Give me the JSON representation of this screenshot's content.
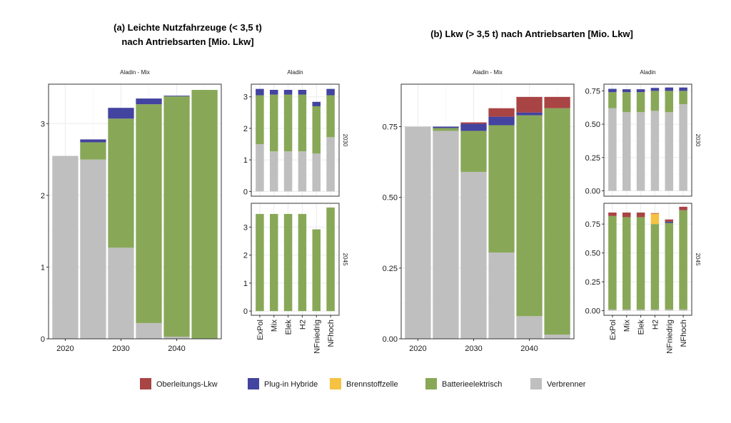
{
  "colors": {
    "Oberleitungs-Lkw": "#a94444",
    "Plug-in Hybride": "#4343a0",
    "Brennstoffzelle": "#f5c242",
    "Batterieelektrisch": "#88a858",
    "Verbrenner": "#bfbfbf"
  },
  "legend": {
    "items": [
      "Oberleitungs-Lkw",
      "Plug-in Hybride",
      "Brennstoffzelle",
      "Batterieelektrisch",
      "Verbrenner"
    ]
  },
  "chart_data": [
    {
      "type": "bar",
      "stacked": true,
      "title": "(a) Leichte Nutzfahrzeuge (< 3,5 t)\nnach Antriebsarten [Mio. Lkw]",
      "panels": [
        {
          "strip": "Aladin - Mix",
          "x": [
            2020,
            2025,
            2030,
            2035,
            2040,
            2045
          ],
          "xticks": [
            "2020",
            "2030",
            "2040"
          ],
          "ylim": [
            0,
            3.55
          ],
          "yticks": [
            0,
            1,
            2,
            3
          ],
          "yticklabels": [
            "0",
            "1",
            "2",
            "3"
          ],
          "series": [
            {
              "name": "Verbrenner",
              "values": [
                2.55,
                2.5,
                1.27,
                0.22,
                0.03,
                0.0
              ]
            },
            {
              "name": "Batterieelektrisch",
              "values": [
                0.0,
                0.24,
                1.8,
                3.05,
                3.35,
                3.47
              ]
            },
            {
              "name": "Brennstoffzelle",
              "values": [
                0,
                0,
                0,
                0,
                0,
                0
              ]
            },
            {
              "name": "Plug-in Hybride",
              "values": [
                0.0,
                0.04,
                0.15,
                0.08,
                0.01,
                0.0
              ]
            },
            {
              "name": "Oberleitungs-Lkw",
              "values": [
                0,
                0,
                0,
                0,
                0,
                0
              ]
            }
          ]
        },
        {
          "strip": "Aladin",
          "facet": "2030",
          "categories": [
            "ExPol",
            "Mix",
            "Elek",
            "H2",
            "NFniedrig",
            "NFhoch"
          ],
          "ylim": [
            -0.15,
            3.4
          ],
          "yticks": [
            0,
            1,
            2,
            3
          ],
          "yticklabels": [
            "0",
            "1",
            "2",
            "3"
          ],
          "series": [
            {
              "name": "Verbrenner",
              "values": [
                1.5,
                1.27,
                1.27,
                1.27,
                1.2,
                1.72
              ]
            },
            {
              "name": "Batterieelektrisch",
              "values": [
                1.55,
                1.8,
                1.8,
                1.8,
                1.5,
                1.33
              ]
            },
            {
              "name": "Brennstoffzelle",
              "values": [
                0,
                0,
                0,
                0,
                0,
                0
              ]
            },
            {
              "name": "Plug-in Hybride",
              "values": [
                0.2,
                0.15,
                0.15,
                0.15,
                0.14,
                0.2
              ]
            },
            {
              "name": "Oberleitungs-Lkw",
              "values": [
                0,
                0,
                0,
                0,
                0,
                0
              ]
            }
          ]
        },
        {
          "strip": "",
          "facet": "2045",
          "categories": [
            "ExPol",
            "Mix",
            "Elek",
            "H2",
            "NFniedrig",
            "NFhoch"
          ],
          "ylim": [
            -0.15,
            3.85
          ],
          "yticks": [
            0,
            1,
            2,
            3
          ],
          "yticklabels": [
            "0",
            "1",
            "2",
            "3"
          ],
          "series": [
            {
              "name": "Verbrenner",
              "values": [
                0,
                0,
                0,
                0,
                0,
                0
              ]
            },
            {
              "name": "Batterieelektrisch",
              "values": [
                3.47,
                3.47,
                3.47,
                3.47,
                2.92,
                3.7
              ]
            },
            {
              "name": "Brennstoffzelle",
              "values": [
                0,
                0,
                0,
                0,
                0,
                0
              ]
            },
            {
              "name": "Plug-in Hybride",
              "values": [
                0,
                0,
                0,
                0,
                0,
                0
              ]
            },
            {
              "name": "Oberleitungs-Lkw",
              "values": [
                0,
                0,
                0,
                0,
                0,
                0
              ]
            }
          ]
        }
      ]
    },
    {
      "type": "bar",
      "stacked": true,
      "title": "(b) Lkw (> 3,5 t) nach Antriebsarten [Mio. Lkw]",
      "panels": [
        {
          "strip": "Aladin - Mix",
          "x": [
            2020,
            2025,
            2030,
            2035,
            2040,
            2045
          ],
          "xticks": [
            "2020",
            "2030",
            "2040"
          ],
          "ylim": [
            0,
            0.9
          ],
          "yticks": [
            0,
            0.25,
            0.5,
            0.75
          ],
          "yticklabels": [
            "0.00",
            "0.25",
            "0.50",
            "0.75"
          ],
          "series": [
            {
              "name": "Verbrenner",
              "values": [
                0.75,
                0.735,
                0.59,
                0.305,
                0.08,
                0.015
              ]
            },
            {
              "name": "Batterieelektrisch",
              "values": [
                0.0,
                0.01,
                0.145,
                0.45,
                0.71,
                0.8
              ]
            },
            {
              "name": "Brennstoffzelle",
              "values": [
                0,
                0,
                0,
                0,
                0,
                0
              ]
            },
            {
              "name": "Plug-in Hybride",
              "values": [
                0.0,
                0.005,
                0.025,
                0.03,
                0.01,
                0.0
              ]
            },
            {
              "name": "Oberleitungs-Lkw",
              "values": [
                0.0,
                0.0,
                0.005,
                0.03,
                0.055,
                0.04
              ]
            }
          ]
        },
        {
          "strip": "Aladin",
          "facet": "2030",
          "categories": [
            "ExPol",
            "Mix",
            "Elek",
            "H2",
            "NFniedrig",
            "NFhoch"
          ],
          "ylim": [
            -0.04,
            0.8
          ],
          "yticks": [
            0,
            0.25,
            0.5,
            0.75
          ],
          "yticklabels": [
            "0.00",
            "0.25",
            "0.50",
            "0.75"
          ],
          "series": [
            {
              "name": "Verbrenner",
              "values": [
                0.62,
                0.59,
                0.59,
                0.6,
                0.59,
                0.65
              ]
            },
            {
              "name": "Batterieelektrisch",
              "values": [
                0.12,
                0.15,
                0.15,
                0.15,
                0.16,
                0.1
              ]
            },
            {
              "name": "Brennstoffzelle",
              "values": [
                0,
                0,
                0,
                0,
                0,
                0
              ]
            },
            {
              "name": "Plug-in Hybride",
              "values": [
                0.025,
                0.022,
                0.022,
                0.022,
                0.025,
                0.025
              ]
            },
            {
              "name": "Oberleitungs-Lkw",
              "values": [
                0,
                0,
                0,
                0,
                0,
                0
              ]
            }
          ]
        },
        {
          "strip": "",
          "facet": "2045",
          "categories": [
            "ExPol",
            "Mix",
            "Elek",
            "H2",
            "NFniedrig",
            "NFhoch"
          ],
          "ylim": [
            -0.04,
            0.93
          ],
          "yticks": [
            0,
            0.25,
            0.5,
            0.75
          ],
          "yticklabels": [
            "0.00",
            "0.25",
            "0.50",
            "0.75"
          ],
          "series": [
            {
              "name": "Verbrenner",
              "values": [
                0.01,
                0.01,
                0.01,
                0.01,
                0.01,
                0.01
              ]
            },
            {
              "name": "Batterieelektrisch",
              "values": [
                0.81,
                0.8,
                0.8,
                0.74,
                0.75,
                0.86
              ]
            },
            {
              "name": "Brennstoffzelle",
              "values": [
                0,
                0,
                0,
                0.09,
                0,
                0
              ]
            },
            {
              "name": "Plug-in Hybride",
              "values": [
                0,
                0,
                0,
                0,
                0.01,
                0
              ]
            },
            {
              "name": "Oberleitungs-Lkw",
              "values": [
                0.03,
                0.04,
                0.04,
                0.005,
                0.02,
                0.03
              ]
            }
          ]
        }
      ]
    }
  ]
}
